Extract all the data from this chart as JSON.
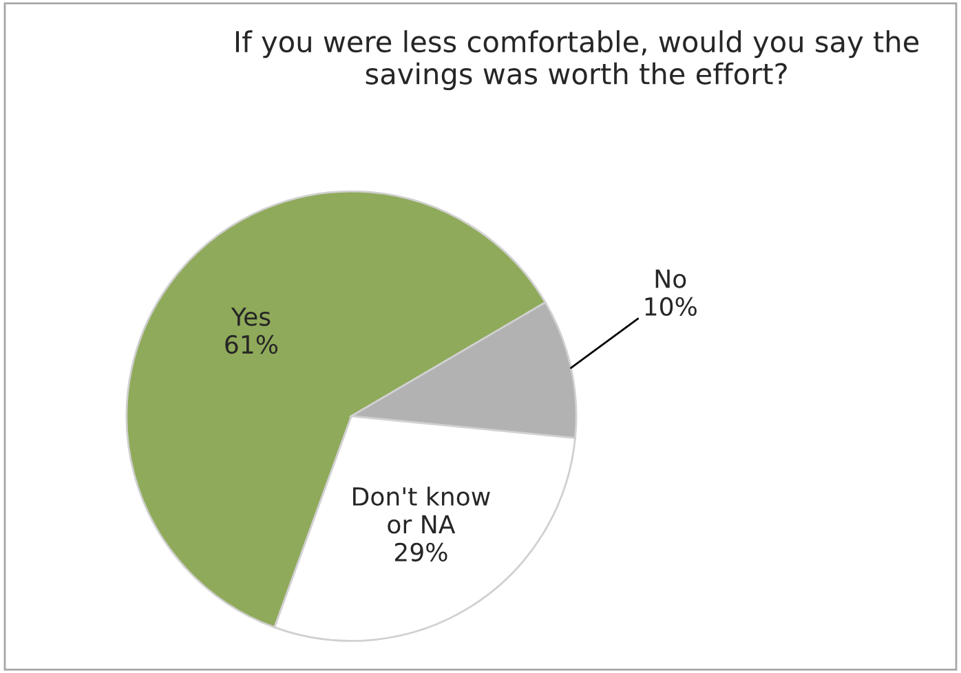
{
  "chart_data": {
    "type": "pie",
    "title": "If you were less comfortable, would you say the savings was worth the effort?",
    "categories": [
      "Yes",
      "No",
      "Don't know\nor NA"
    ],
    "values": [
      61,
      10,
      29
    ],
    "value_labels": [
      "61%",
      "10%",
      "29%"
    ],
    "colors": [
      "#8faa5a",
      "#b2b2b2",
      "#ffffff"
    ],
    "legend": false
  }
}
